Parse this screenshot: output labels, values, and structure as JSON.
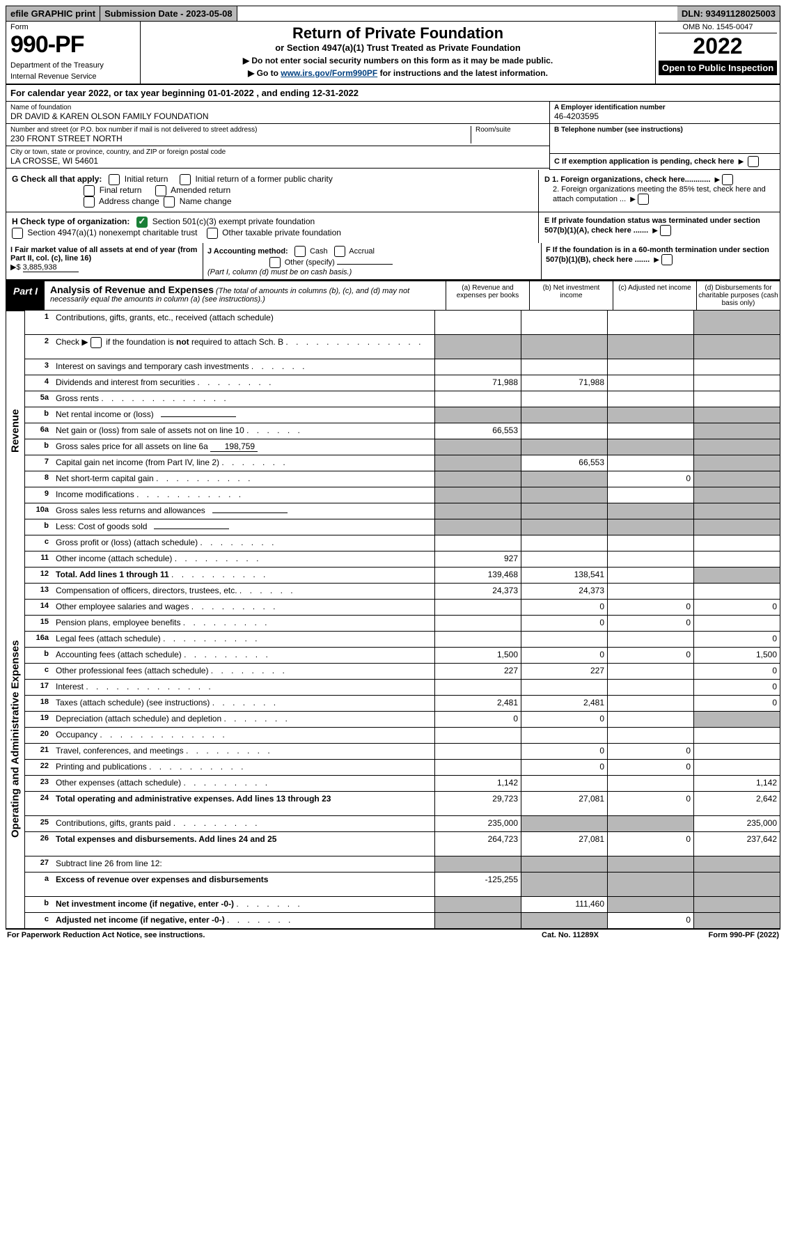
{
  "topbar": {
    "efile": "efile GRAPHIC print",
    "sublabel": "Submission Date - ",
    "subdate": "2023-05-08",
    "dln": "DLN: 93491128025003"
  },
  "header": {
    "form_label": "Form",
    "form_num": "990-PF",
    "dept1": "Department of the Treasury",
    "dept2": "Internal Revenue Service",
    "title": "Return of Private Foundation",
    "subtitle": "or Section 4947(a)(1) Trust Treated as Private Foundation",
    "note1": "▶ Do not enter social security numbers on this form as it may be made public.",
    "note2_pre": "▶ Go to ",
    "note2_link": "www.irs.gov/Form990PF",
    "note2_post": " for instructions and the latest information.",
    "omb": "OMB No. 1545-0047",
    "year": "2022",
    "opento": "Open to Public Inspection"
  },
  "cal": {
    "pre": "For calendar year 2022, or tax year beginning ",
    "begin": "01-01-2022",
    "mid": " , and ending ",
    "end": "12-31-2022"
  },
  "info": {
    "name_lbl": "Name of foundation",
    "name_val": "DR DAVID & KAREN OLSON FAMILY FOUNDATION",
    "addr_lbl": "Number and street (or P.O. box number if mail is not delivered to street address)",
    "addr_val": "230 FRONT STREET NORTH",
    "room_lbl": "Room/suite",
    "city_lbl": "City or town, state or province, country, and ZIP or foreign postal code",
    "city_val": "LA CROSSE, WI  54601",
    "a_lbl": "A Employer identification number",
    "a_val": "46-4203595",
    "b_lbl": "B Telephone number (see instructions)",
    "c_lbl": "C If exemption application is pending, check here",
    "d1_lbl": "D 1. Foreign organizations, check here............",
    "d2_lbl": "2. Foreign organizations meeting the 85% test, check here and attach computation ...",
    "e_lbl": "E  If private foundation status was terminated under section 507(b)(1)(A), check here .......",
    "f_lbl": "F  If the foundation is in a 60-month termination under section 507(b)(1)(B), check here ......."
  },
  "g": {
    "label": "G Check all that apply:",
    "opts": [
      "Initial return",
      "Final return",
      "Address change",
      "Initial return of a former public charity",
      "Amended return",
      "Name change"
    ]
  },
  "h": {
    "label": "H Check type of organization:",
    "o1": "Section 501(c)(3) exempt private foundation",
    "o2": "Section 4947(a)(1) nonexempt charitable trust",
    "o3": "Other taxable private foundation"
  },
  "i": {
    "label": "I Fair market value of all assets at end of year (from Part II, col. (c), line 16)",
    "arrow": "▶$",
    "val": "3,885,938"
  },
  "j": {
    "label": "J Accounting method:",
    "o1": "Cash",
    "o2": "Accrual",
    "o3": "Other (specify)",
    "note": "(Part I, column (d) must be on cash basis.)"
  },
  "part1": {
    "tag": "Part I",
    "title": "Analysis of Revenue and Expenses",
    "desc": " (The total of amounts in columns (b), (c), and (d) may not necessarily equal the amounts in column (a) (see instructions).)",
    "col_a": "(a)  Revenue and expenses per books",
    "col_b": "(b)  Net investment income",
    "col_c": "(c)  Adjusted net income",
    "col_d": "(d)  Disbursements for charitable purposes (cash basis only)"
  },
  "sidelabels": {
    "rev": "Revenue",
    "exp": "Operating and Administrative Expenses"
  },
  "rows": {
    "r1": {
      "n": "1",
      "d": "Contributions, gifts, grants, etc., received (attach schedule)"
    },
    "r2": {
      "n": "2",
      "d_pre": "Check ▶ ",
      "d_post": " if the foundation is ",
      "d_bold": "not",
      "d_end": " required to attach Sch. B"
    },
    "r3": {
      "n": "3",
      "d": "Interest on savings and temporary cash investments"
    },
    "r4": {
      "n": "4",
      "d": "Dividends and interest from securities",
      "a": "71,988",
      "b": "71,988"
    },
    "r5a": {
      "n": "5a",
      "d": "Gross rents"
    },
    "r5b": {
      "n": "b",
      "d": "Net rental income or (loss)"
    },
    "r6a": {
      "n": "6a",
      "d": "Net gain or (loss) from sale of assets not on line 10",
      "a": "66,553"
    },
    "r6b": {
      "n": "b",
      "d": "Gross sales price for all assets on line 6a",
      "inline": "198,759"
    },
    "r7": {
      "n": "7",
      "d": "Capital gain net income (from Part IV, line 2)",
      "b": "66,553"
    },
    "r8": {
      "n": "8",
      "d": "Net short-term capital gain",
      "c": "0"
    },
    "r9": {
      "n": "9",
      "d": "Income modifications"
    },
    "r10a": {
      "n": "10a",
      "d": "Gross sales less returns and allowances"
    },
    "r10b": {
      "n": "b",
      "d": "Less: Cost of goods sold"
    },
    "r10c": {
      "n": "c",
      "d": "Gross profit or (loss) (attach schedule)"
    },
    "r11": {
      "n": "11",
      "d": "Other income (attach schedule)",
      "a": "927"
    },
    "r12": {
      "n": "12",
      "d": "Total. Add lines 1 through 11",
      "a": "139,468",
      "b": "138,541",
      "bold": true
    },
    "r13": {
      "n": "13",
      "d": "Compensation of officers, directors, trustees, etc.",
      "a": "24,373",
      "b": "24,373"
    },
    "r14": {
      "n": "14",
      "d": "Other employee salaries and wages",
      "b": "0",
      "c": "0",
      "dd": "0"
    },
    "r15": {
      "n": "15",
      "d": "Pension plans, employee benefits",
      "b": "0",
      "c": "0"
    },
    "r16a": {
      "n": "16a",
      "d": "Legal fees (attach schedule)",
      "dd": "0"
    },
    "r16b": {
      "n": "b",
      "d": "Accounting fees (attach schedule)",
      "a": "1,500",
      "b": "0",
      "c": "0",
      "dd": "1,500"
    },
    "r16c": {
      "n": "c",
      "d": "Other professional fees (attach schedule)",
      "a": "227",
      "b": "227",
      "dd": "0"
    },
    "r17": {
      "n": "17",
      "d": "Interest",
      "dd": "0"
    },
    "r18": {
      "n": "18",
      "d": "Taxes (attach schedule) (see instructions)",
      "a": "2,481",
      "b": "2,481",
      "dd": "0"
    },
    "r19": {
      "n": "19",
      "d": "Depreciation (attach schedule) and depletion",
      "a": "0",
      "b": "0"
    },
    "r20": {
      "n": "20",
      "d": "Occupancy"
    },
    "r21": {
      "n": "21",
      "d": "Travel, conferences, and meetings",
      "b": "0",
      "c": "0"
    },
    "r22": {
      "n": "22",
      "d": "Printing and publications",
      "b": "0",
      "c": "0"
    },
    "r23": {
      "n": "23",
      "d": "Other expenses (attach schedule)",
      "a": "1,142",
      "dd": "1,142"
    },
    "r24": {
      "n": "24",
      "d": "Total operating and administrative expenses. Add lines 13 through 23",
      "a": "29,723",
      "b": "27,081",
      "c": "0",
      "dd": "2,642",
      "bold": true
    },
    "r25": {
      "n": "25",
      "d": "Contributions, gifts, grants paid",
      "a": "235,000",
      "dd": "235,000"
    },
    "r26": {
      "n": "26",
      "d": "Total expenses and disbursements. Add lines 24 and 25",
      "a": "264,723",
      "b": "27,081",
      "c": "0",
      "dd": "237,642",
      "bold": true
    },
    "r27": {
      "n": "27",
      "d": "Subtract line 26 from line 12:"
    },
    "r27a": {
      "n": "a",
      "d": "Excess of revenue over expenses and disbursements",
      "a": "-125,255",
      "bold": true
    },
    "r27b": {
      "n": "b",
      "d": "Net investment income (if negative, enter -0-)",
      "b": "111,460",
      "bold": true
    },
    "r27c": {
      "n": "c",
      "d": "Adjusted net income (if negative, enter -0-)",
      "c": "0",
      "bold": true
    }
  },
  "footer": {
    "f1": "For Paperwork Reduction Act Notice, see instructions.",
    "f2": "Cat. No. 11289X",
    "f3": "Form 990-PF (2022)"
  },
  "greycells": {
    "r1": [
      "d"
    ],
    "r2": [
      "a",
      "b",
      "c",
      "d"
    ],
    "r5b": [
      "a",
      "b",
      "c",
      "d"
    ],
    "r6a": [
      "d"
    ],
    "r6b": [
      "a",
      "b",
      "c",
      "d"
    ],
    "r7": [
      "a",
      "d"
    ],
    "r8": [
      "a",
      "b",
      "d"
    ],
    "r9": [
      "a",
      "b",
      "d"
    ],
    "r10a": [
      "a",
      "b",
      "c",
      "d"
    ],
    "r10b": [
      "a",
      "b",
      "c",
      "d"
    ],
    "r12": [
      "d"
    ],
    "r19": [
      "d"
    ],
    "r25": [
      "b",
      "c"
    ],
    "r27": [
      "a",
      "b",
      "c",
      "d"
    ],
    "r27a": [
      "b",
      "c",
      "d"
    ],
    "r27b": [
      "a",
      "c",
      "d"
    ],
    "r27c": [
      "a",
      "b",
      "d"
    ]
  }
}
